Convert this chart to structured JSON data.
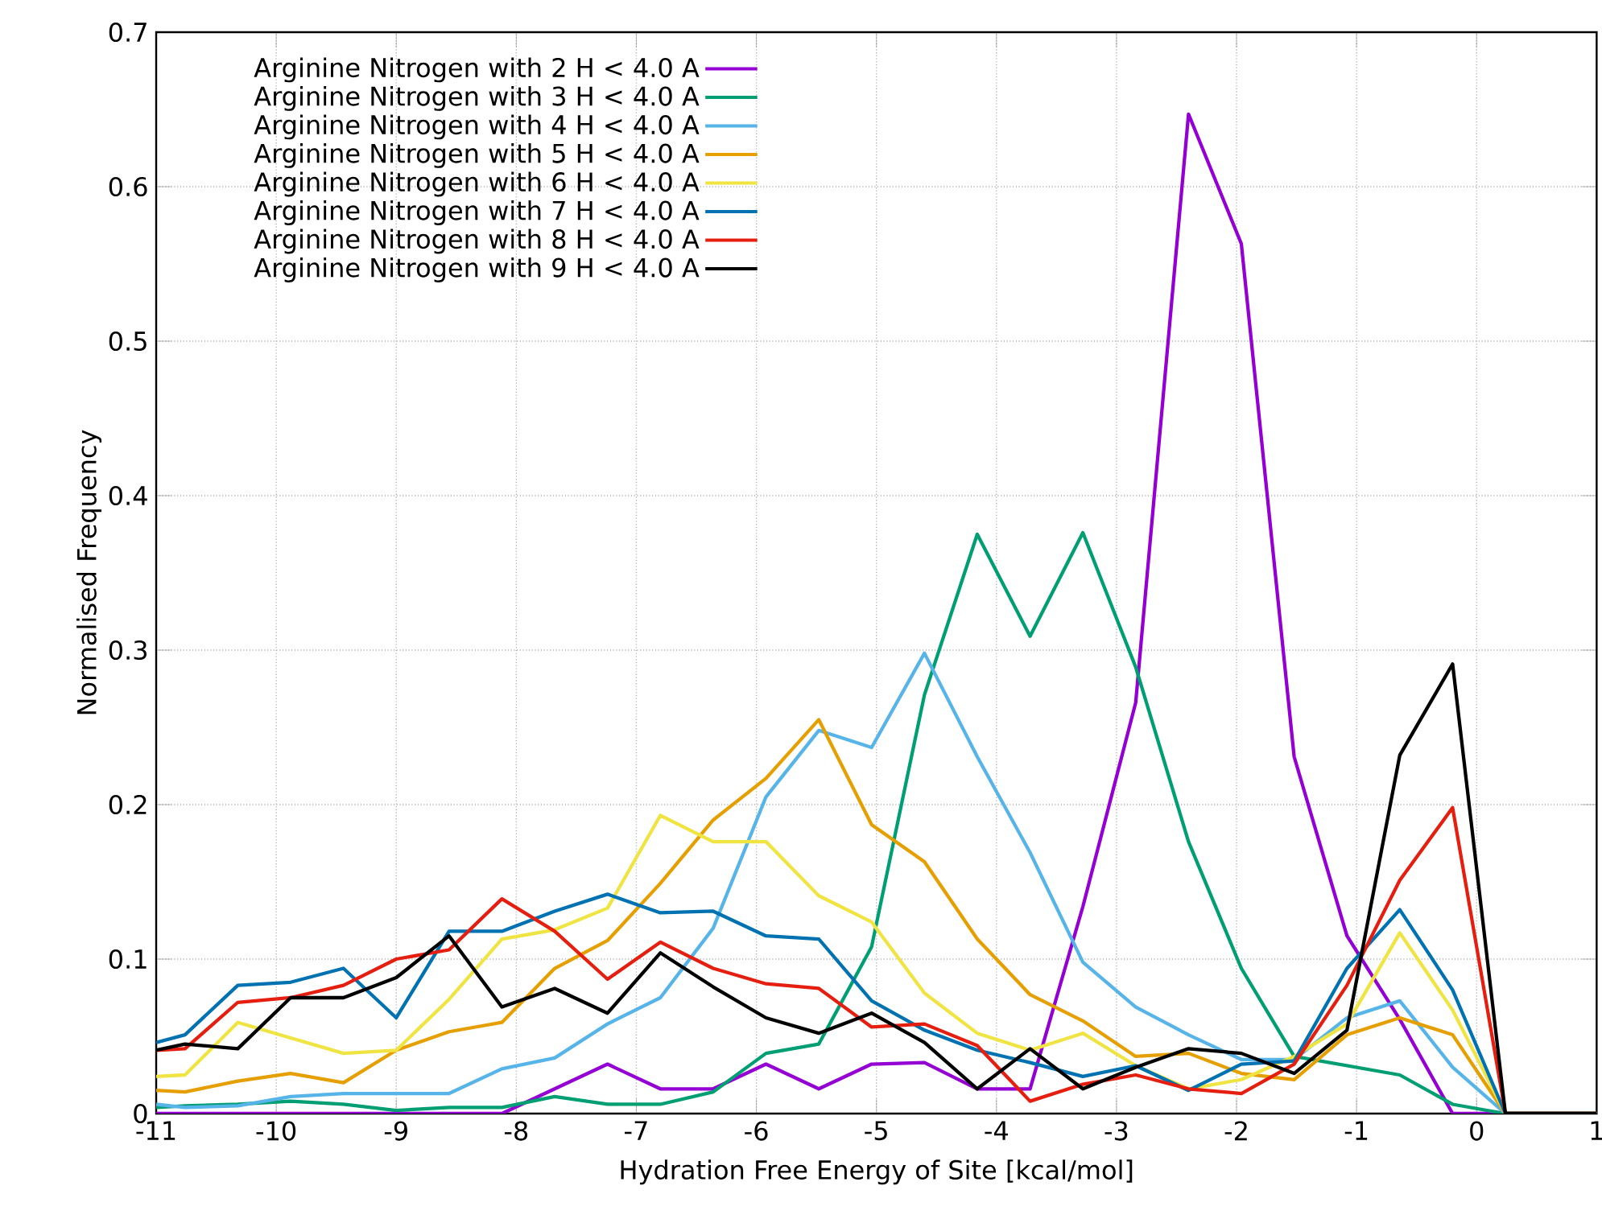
{
  "chart_data": {
    "type": "line",
    "xlabel": "Hydration Free Energy of Site [kcal/mol]",
    "ylabel": "Normalised Frequency",
    "x": [
      -11,
      -10.76,
      -10.32,
      -9.88,
      -9.44,
      -9.0,
      -8.56,
      -8.12,
      -7.68,
      -7.24,
      -6.8,
      -6.36,
      -5.92,
      -5.48,
      -5.04,
      -4.6,
      -4.16,
      -3.72,
      -3.28,
      -2.84,
      -2.4,
      -1.96,
      -1.52,
      -1.08,
      -0.64,
      -0.2,
      0.24,
      1
    ],
    "series": [
      {
        "name": "Arginine Nitrogen with 2 H < 4.0 A",
        "color": "#9400d3",
        "values": [
          0,
          0,
          0,
          0,
          0,
          0,
          0,
          0,
          0.016,
          0.032,
          0.016,
          0.016,
          0.032,
          0.016,
          0.032,
          0.033,
          0.016,
          0.016,
          0.134,
          0.266,
          0.647,
          0.563,
          0.231,
          0.115,
          0.061,
          0,
          0,
          0
        ]
      },
      {
        "name": "Arginine Nitrogen with 3 H < 4.0 A",
        "color": "#009e73",
        "values": [
          0.004,
          0.005,
          0.006,
          0.008,
          0.006,
          0.002,
          0.004,
          0.004,
          0.011,
          0.006,
          0.006,
          0.014,
          0.039,
          0.045,
          0.108,
          0.271,
          0.375,
          0.309,
          0.376,
          0.289,
          0.176,
          0.094,
          0.037,
          0.031,
          0.025,
          0.006,
          0,
          0
        ]
      },
      {
        "name": "Arginine Nitrogen with 4 H < 4.0 A",
        "color": "#56b4e9",
        "values": [
          0.006,
          0.004,
          0.005,
          0.011,
          0.013,
          0.013,
          0.013,
          0.029,
          0.036,
          0.058,
          0.075,
          0.12,
          0.205,
          0.248,
          0.237,
          0.298,
          0.231,
          0.169,
          0.098,
          0.069,
          0.051,
          0.035,
          0.035,
          0.062,
          0.073,
          0.03,
          0,
          0
        ]
      },
      {
        "name": "Arginine Nitrogen with 5 H < 4.0 A",
        "color": "#e69f00",
        "values": [
          0.015,
          0.014,
          0.021,
          0.026,
          0.02,
          0.041,
          0.053,
          0.059,
          0.094,
          0.112,
          0.149,
          0.19,
          0.217,
          0.255,
          0.187,
          0.163,
          0.113,
          0.077,
          0.06,
          0.037,
          0.039,
          0.026,
          0.022,
          0.051,
          0.062,
          0.051,
          0,
          0
        ]
      },
      {
        "name": "Arginine Nitrogen with 6 H < 4.0 A",
        "color": "#f0e442",
        "values": [
          0.024,
          0.025,
          0.059,
          0.049,
          0.039,
          0.041,
          0.074,
          0.113,
          0.119,
          0.133,
          0.193,
          0.176,
          0.176,
          0.141,
          0.124,
          0.078,
          0.052,
          0.041,
          0.052,
          0.031,
          0.016,
          0.022,
          0.037,
          0.058,
          0.117,
          0.067,
          0,
          0
        ]
      },
      {
        "name": "Arginine Nitrogen with 7 H < 4.0 A",
        "color": "#0072b2",
        "values": [
          0.046,
          0.051,
          0.083,
          0.085,
          0.094,
          0.062,
          0.118,
          0.118,
          0.131,
          0.142,
          0.13,
          0.131,
          0.115,
          0.113,
          0.073,
          0.054,
          0.041,
          0.033,
          0.024,
          0.031,
          0.015,
          0.032,
          0.034,
          0.094,
          0.132,
          0.08,
          0,
          0
        ]
      },
      {
        "name": "Arginine Nitrogen with 8 H < 4.0 A",
        "color": "#e51e10",
        "values": [
          0.041,
          0.042,
          0.072,
          0.075,
          0.083,
          0.1,
          0.106,
          0.139,
          0.118,
          0.087,
          0.111,
          0.094,
          0.084,
          0.081,
          0.056,
          0.058,
          0.044,
          0.008,
          0.019,
          0.025,
          0.016,
          0.013,
          0.032,
          0.083,
          0.151,
          0.198,
          0,
          0
        ]
      },
      {
        "name": "Arginine Nitrogen with 9 H < 4.0 A",
        "color": "#000000",
        "values": [
          0.041,
          0.045,
          0.042,
          0.075,
          0.075,
          0.088,
          0.115,
          0.069,
          0.081,
          0.065,
          0.104,
          0.082,
          0.062,
          0.052,
          0.065,
          0.046,
          0.016,
          0.042,
          0.016,
          0.03,
          0.042,
          0.039,
          0.026,
          0.054,
          0.232,
          0.291,
          0,
          0
        ]
      }
    ],
    "xlim": [
      -11,
      1
    ],
    "ylim": [
      0,
      0.7
    ],
    "xticks": [
      -11,
      -10,
      -9,
      -8,
      -7,
      -6,
      -5,
      -4,
      -3,
      -2,
      -1,
      0,
      1
    ],
    "yticks": [
      0,
      0.1,
      0.2,
      0.3,
      0.4,
      0.5,
      0.6,
      0.7
    ],
    "grid": true,
    "legend": "top left",
    "marker": "none",
    "line_style": "solid"
  }
}
